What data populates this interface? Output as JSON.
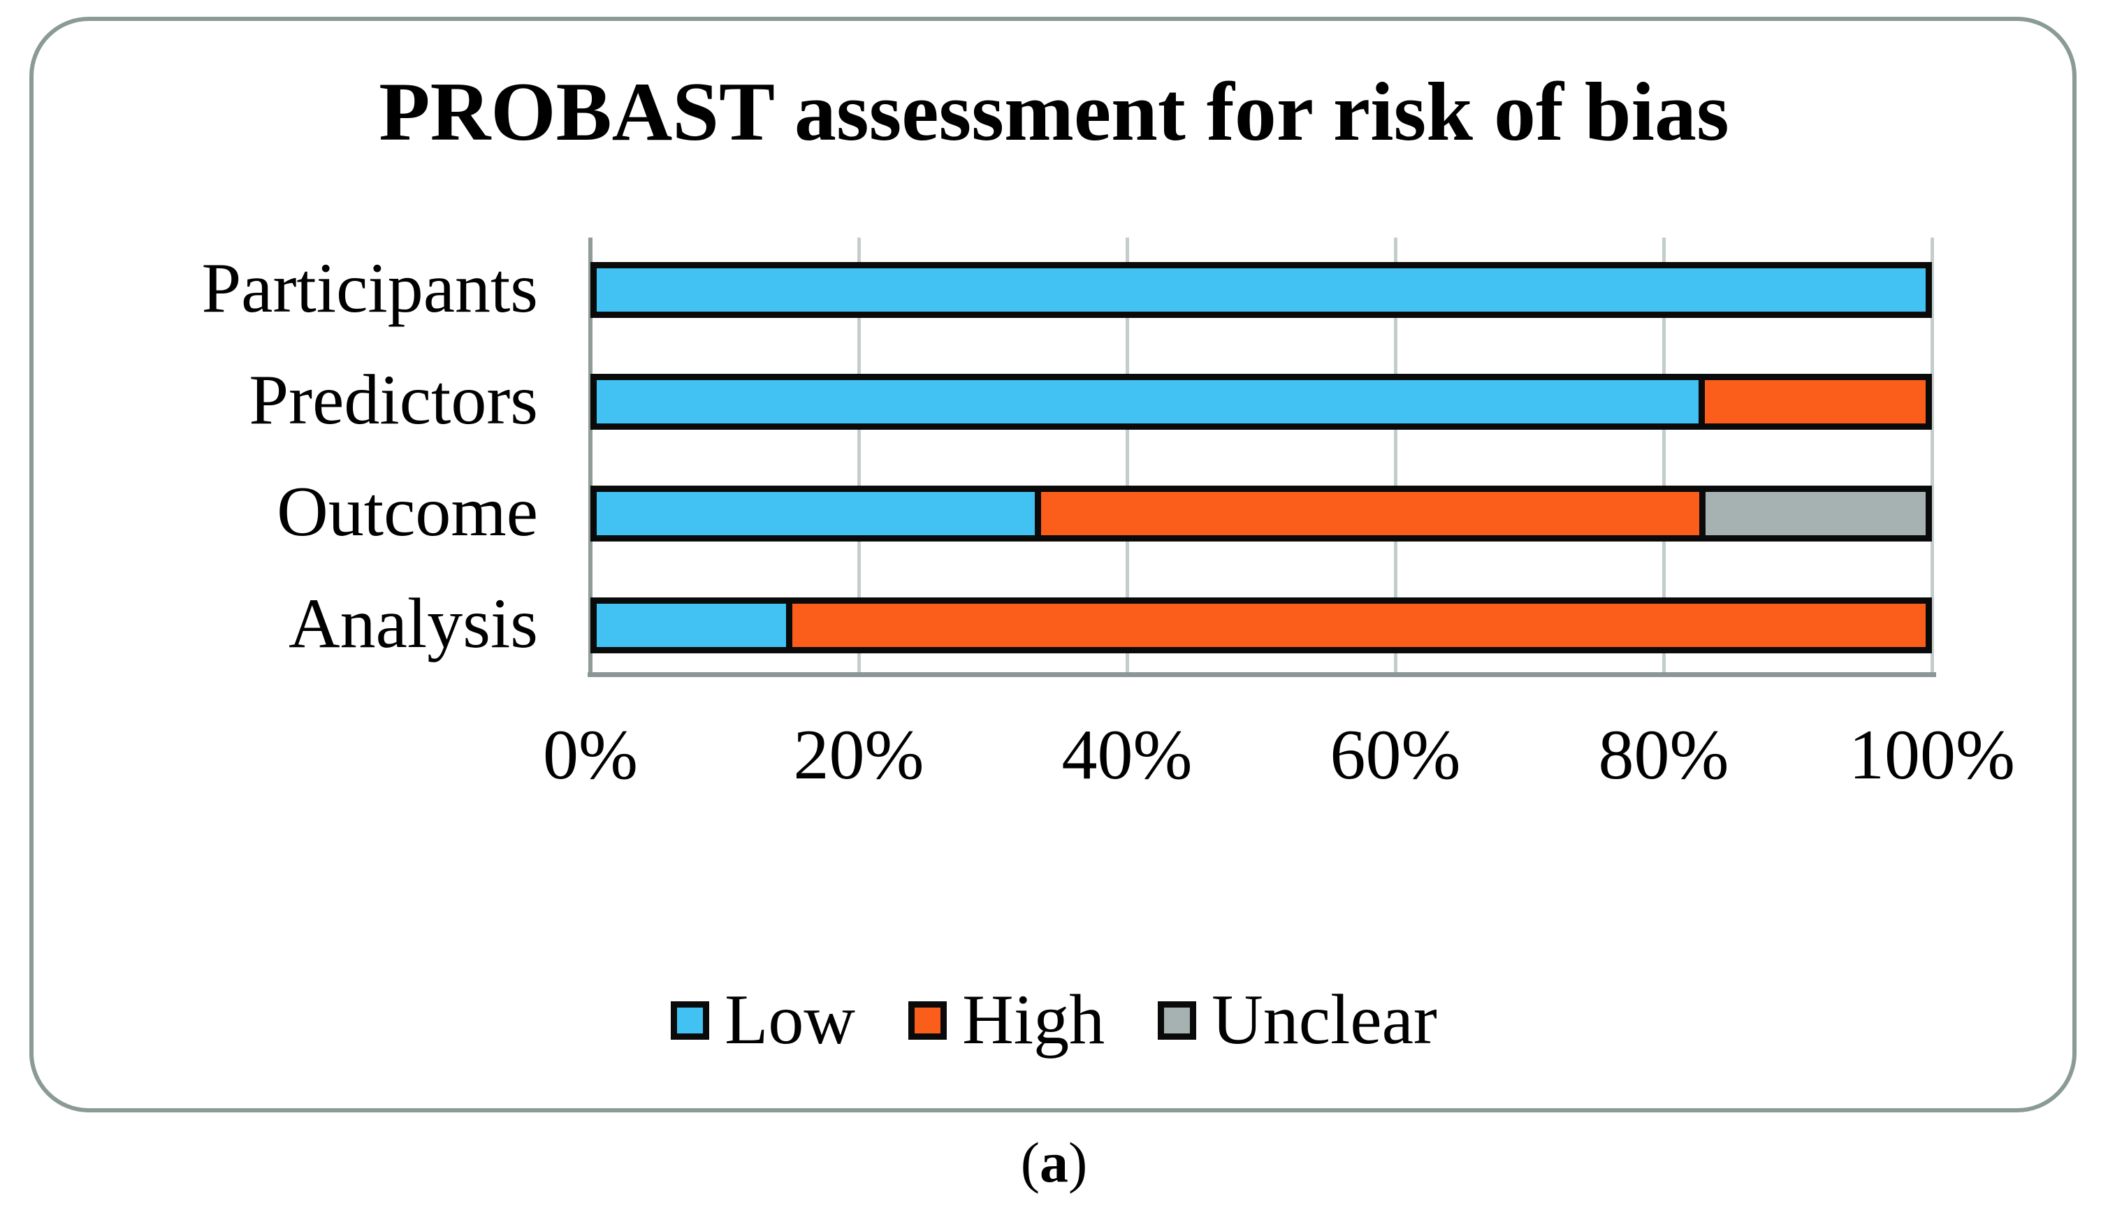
{
  "figure": {
    "caption": {
      "open": "(",
      "label": "a",
      "close": ")"
    }
  },
  "chart_data": {
    "type": "bar",
    "orientation": "horizontal",
    "stacked": true,
    "title": "PROBAST assessment for risk of bias",
    "categories": [
      "Participants",
      "Predictors",
      "Outcome",
      "Analysis"
    ],
    "series": [
      {
        "name": "Low",
        "color": "#42C2F3",
        "values": [
          100,
          83.3,
          33.3,
          14.3
        ]
      },
      {
        "name": "High",
        "color": "#FB5D1B",
        "values": [
          0,
          16.7,
          50.0,
          85.7
        ]
      },
      {
        "name": "Unclear",
        "color": "#A6B2B1",
        "values": [
          0,
          0,
          16.7,
          0
        ]
      }
    ],
    "x_ticks": [
      "0%",
      "20%",
      "40%",
      "60%",
      "80%",
      "100%"
    ],
    "tick_values": [
      0,
      20,
      40,
      60,
      80,
      100
    ],
    "xlim": [
      0,
      100
    ],
    "grid": "vertical",
    "legend_position": "bottom",
    "bar_outline_color": "#0A0A0A"
  },
  "colors": {
    "low": "#42C2F3",
    "high": "#FB5D1B",
    "unclear": "#A6B2B1",
    "bar_outline": "#0A0A0A",
    "panel_border": "#8A9A94",
    "axis_line": "#8A9796",
    "gridline": "#C3CDCC",
    "text": "#000000"
  }
}
